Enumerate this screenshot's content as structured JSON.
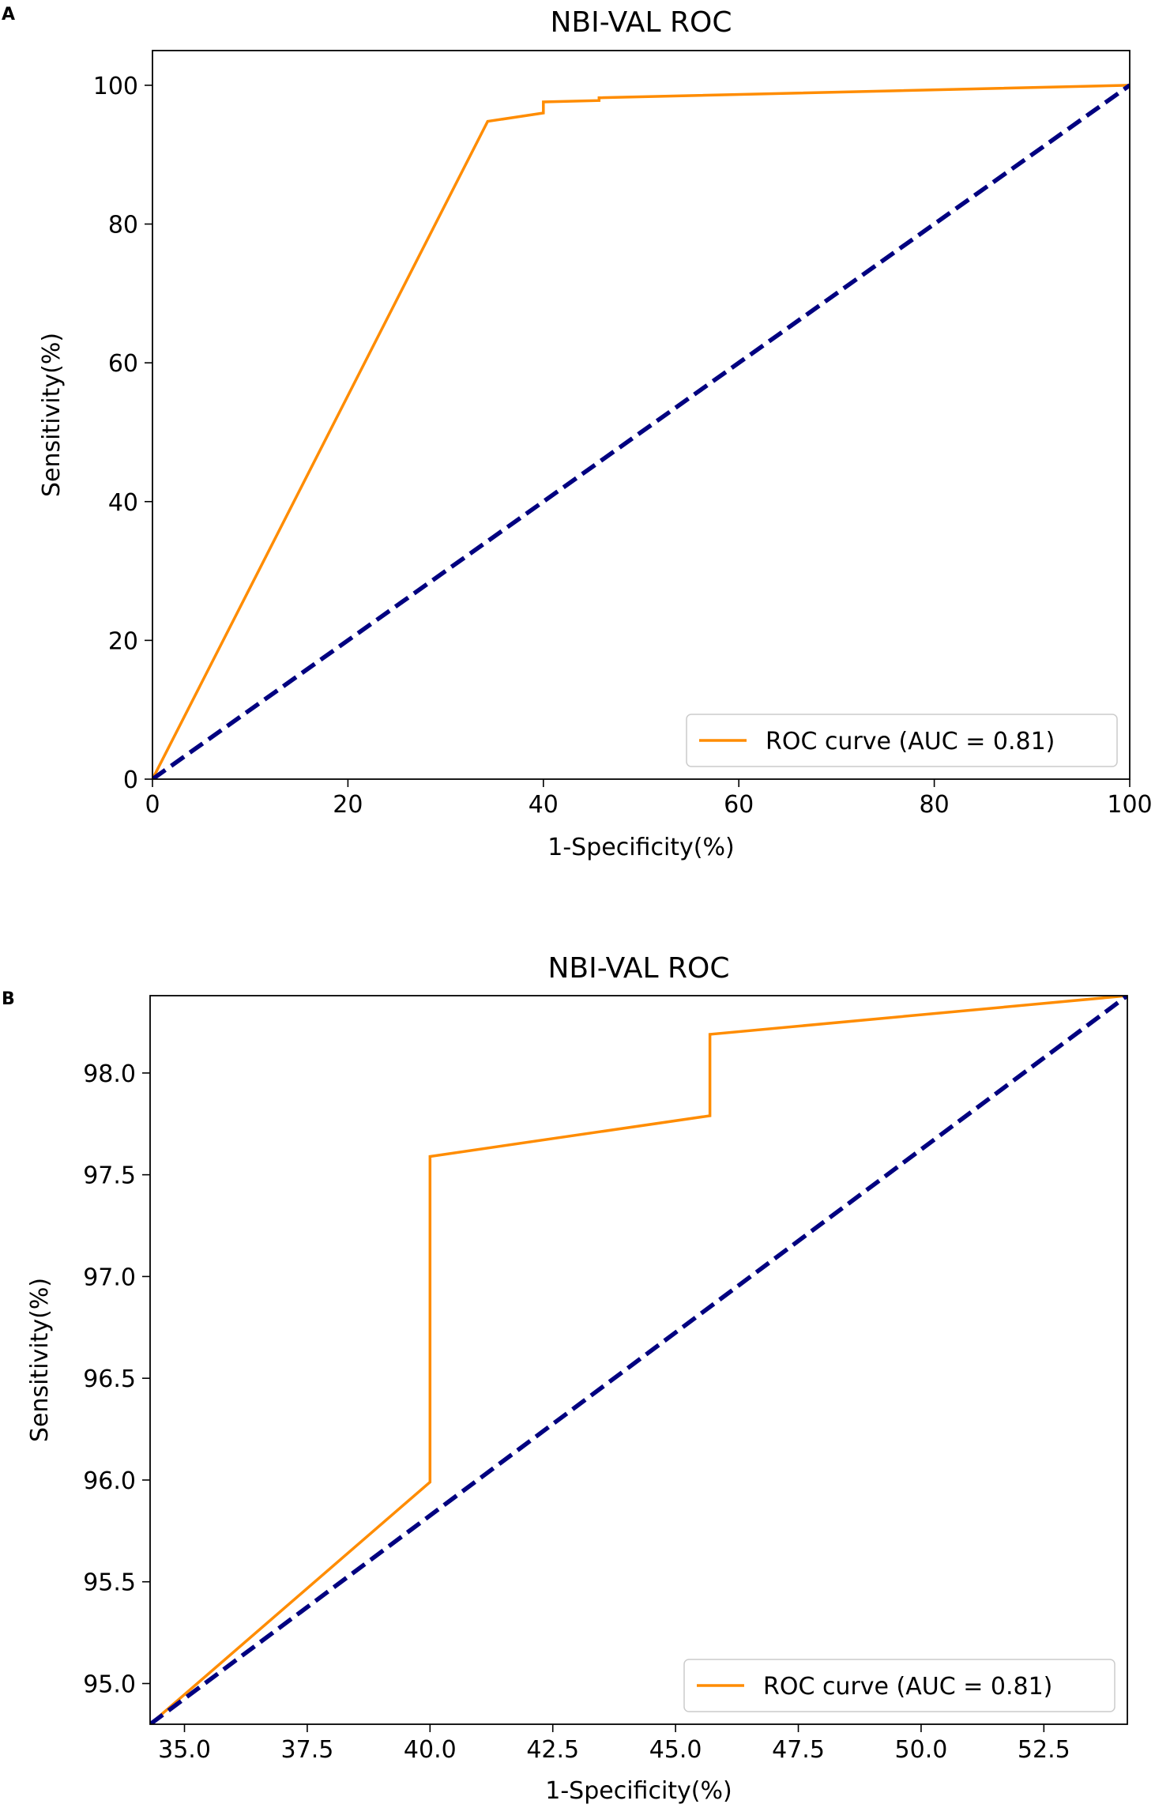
{
  "chart_data": [
    {
      "panel_label": "A",
      "type": "line",
      "title": "NBI-VAL ROC",
      "xlabel": "1-Specificity(%)",
      "ylabel": "Sensitivity(%)",
      "xlim": [
        0,
        100
      ],
      "ylim": [
        0,
        105
      ],
      "xticks": [
        0,
        20,
        40,
        60,
        80,
        100
      ],
      "yticks": [
        0,
        20,
        40,
        60,
        80,
        100
      ],
      "tick_decimals": 0,
      "grid": false,
      "legend_position": "lower-right",
      "series": [
        {
          "name": "ROC curve (AUC = 0.81)",
          "color": "#ff8c00",
          "style": "solid",
          "in_legend": true,
          "x": [
            0,
            34.3,
            40.0,
            40.0,
            45.7,
            45.7,
            100
          ],
          "y": [
            0,
            94.8,
            96.0,
            97.6,
            97.8,
            98.2,
            100
          ]
        },
        {
          "name": "chance-diagonal",
          "color": "#000080",
          "style": "dashed",
          "in_legend": false,
          "x": [
            0,
            100
          ],
          "y": [
            0,
            100
          ]
        }
      ]
    },
    {
      "panel_label": "B",
      "type": "line",
      "title": "NBI-VAL ROC",
      "xlabel": "1-Specificity(%)",
      "ylabel": "Sensitivity(%)",
      "xlim": [
        34.3,
        54.2
      ],
      "ylim": [
        94.8,
        98.38
      ],
      "xticks": [
        35.0,
        37.5,
        40.0,
        42.5,
        45.0,
        47.5,
        50.0,
        52.5
      ],
      "yticks": [
        95.0,
        95.5,
        96.0,
        96.5,
        97.0,
        97.5,
        98.0
      ],
      "tick_decimals": 1,
      "grid": false,
      "legend_position": "lower-right",
      "series": [
        {
          "name": "ROC curve (AUC = 0.81)",
          "color": "#ff8c00",
          "style": "solid",
          "in_legend": true,
          "x": [
            34.3,
            40.0,
            40.0,
            45.7,
            45.7,
            54.2
          ],
          "y": [
            94.8,
            95.99,
            97.59,
            97.79,
            98.19,
            98.38
          ]
        },
        {
          "name": "chance-diagonal",
          "color": "#000080",
          "style": "dashed",
          "in_legend": false,
          "x": [
            34.3,
            54.2
          ],
          "y": [
            94.8,
            98.38
          ]
        }
      ]
    }
  ]
}
